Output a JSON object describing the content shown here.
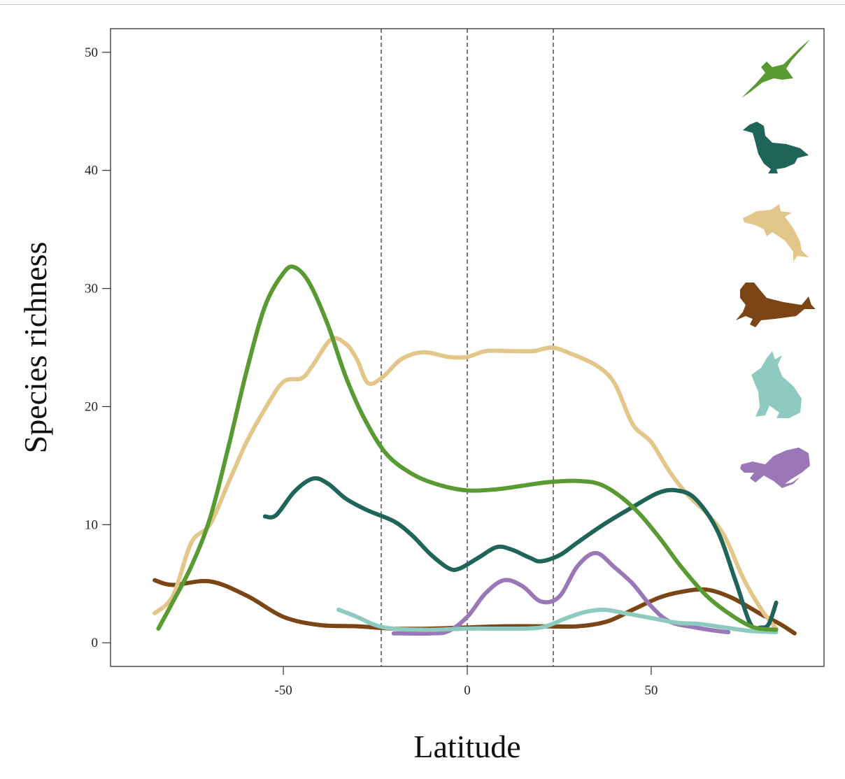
{
  "chart_data": {
    "type": "line",
    "title": "",
    "xlabel": "Latitude",
    "ylabel": "Species richness",
    "xlim": [
      -97,
      97
    ],
    "ylim": [
      -2,
      52
    ],
    "xticks": [
      -50,
      0,
      50
    ],
    "xtick_labels": [
      "-50",
      "0",
      "50"
    ],
    "yticks": [
      0,
      10,
      20,
      30,
      40,
      50
    ],
    "ytick_labels": [
      "0",
      "10",
      "20",
      "30",
      "40",
      "50"
    ],
    "reference_lines_x": [
      -23.4,
      0,
      23.4
    ],
    "grid": false,
    "legend": "right side, silhouette icons",
    "series": [
      {
        "icon": "albatross-silhouette-icon",
        "color": "#5a9a32",
        "points": [
          [
            -84,
            1.2
          ],
          [
            -80,
            3.5
          ],
          [
            -75,
            6.5
          ],
          [
            -70,
            10.5
          ],
          [
            -65,
            16.5
          ],
          [
            -60,
            23
          ],
          [
            -55,
            28.5
          ],
          [
            -50,
            31.3
          ],
          [
            -47,
            31.8
          ],
          [
            -43,
            30.5
          ],
          [
            -38,
            27
          ],
          [
            -33,
            22.5
          ],
          [
            -28,
            19
          ],
          [
            -22,
            16
          ],
          [
            -15,
            14.3
          ],
          [
            -8,
            13.4
          ],
          [
            0,
            12.9
          ],
          [
            8,
            13
          ],
          [
            15,
            13.3
          ],
          [
            22,
            13.6
          ],
          [
            30,
            13.7
          ],
          [
            37,
            13.3
          ],
          [
            45,
            11.5
          ],
          [
            52,
            9
          ],
          [
            58,
            6.5
          ],
          [
            65,
            4
          ],
          [
            72,
            2.3
          ],
          [
            78,
            1.3
          ],
          [
            84,
            1.1
          ]
        ]
      },
      {
        "icon": "duck-silhouette-icon",
        "color": "#1f6458",
        "points": [
          [
            -55,
            10.7
          ],
          [
            -52,
            10.8
          ],
          [
            -47,
            12.8
          ],
          [
            -42,
            13.9
          ],
          [
            -38,
            13.5
          ],
          [
            -33,
            12.2
          ],
          [
            -27,
            11.2
          ],
          [
            -20,
            10.3
          ],
          [
            -15,
            9.1
          ],
          [
            -10,
            7.5
          ],
          [
            -5,
            6.3
          ],
          [
            -2,
            6.3
          ],
          [
            3,
            7.2
          ],
          [
            8,
            8.1
          ],
          [
            12,
            7.9
          ],
          [
            17,
            7.2
          ],
          [
            20,
            6.9
          ],
          [
            25,
            7.4
          ],
          [
            30,
            8.5
          ],
          [
            37,
            10
          ],
          [
            45,
            11.5
          ],
          [
            52,
            12.7
          ],
          [
            57,
            12.9
          ],
          [
            62,
            12.2
          ],
          [
            68,
            9.5
          ],
          [
            73,
            5.2
          ],
          [
            77,
            1.6
          ],
          [
            80,
            1.3
          ],
          [
            82,
            1.6
          ],
          [
            84,
            3.4
          ]
        ]
      },
      {
        "icon": "dolphin-silhouette-icon",
        "color": "#e3c68a",
        "points": [
          [
            -85,
            2.5
          ],
          [
            -80,
            4
          ],
          [
            -75,
            8.5
          ],
          [
            -70,
            10
          ],
          [
            -65,
            13.5
          ],
          [
            -60,
            17
          ],
          [
            -55,
            19.8
          ],
          [
            -50,
            22.1
          ],
          [
            -45,
            22.4
          ],
          [
            -42,
            23.5
          ],
          [
            -37,
            25.7
          ],
          [
            -33,
            25.3
          ],
          [
            -30,
            24
          ],
          [
            -27,
            22
          ],
          [
            -23,
            22.5
          ],
          [
            -18,
            24
          ],
          [
            -12,
            24.6
          ],
          [
            -5,
            24.2
          ],
          [
            0,
            24.2
          ],
          [
            5,
            24.7
          ],
          [
            12,
            24.7
          ],
          [
            18,
            24.7
          ],
          [
            23,
            25
          ],
          [
            28,
            24.5
          ],
          [
            35,
            23.5
          ],
          [
            40,
            22
          ],
          [
            45,
            18.5
          ],
          [
            50,
            17
          ],
          [
            55,
            14.5
          ],
          [
            60,
            12.5
          ],
          [
            65,
            11
          ],
          [
            70,
            9
          ],
          [
            75,
            5.5
          ],
          [
            80,
            2.8
          ],
          [
            84,
            1.2
          ]
        ]
      },
      {
        "icon": "seal-silhouette-icon",
        "color": "#7b4516",
        "points": [
          [
            -85,
            5.3
          ],
          [
            -80,
            4.9
          ],
          [
            -70,
            5.2
          ],
          [
            -60,
            4
          ],
          [
            -50,
            2.2
          ],
          [
            -40,
            1.5
          ],
          [
            -30,
            1.4
          ],
          [
            -20,
            1.2
          ],
          [
            -10,
            1.2
          ],
          [
            0,
            1.3
          ],
          [
            10,
            1.4
          ],
          [
            20,
            1.4
          ],
          [
            30,
            1.4
          ],
          [
            38,
            1.8
          ],
          [
            45,
            2.8
          ],
          [
            52,
            3.8
          ],
          [
            58,
            4.3
          ],
          [
            65,
            4.5
          ],
          [
            72,
            3.8
          ],
          [
            80,
            2.4
          ],
          [
            85,
            1.6
          ],
          [
            89,
            0.8
          ]
        ]
      },
      {
        "icon": "rabbit-silhouette-icon",
        "color": "#8fcac0",
        "points": [
          [
            -35,
            2.8
          ],
          [
            -30,
            2.2
          ],
          [
            -25,
            1.5
          ],
          [
            -20,
            1.2
          ],
          [
            -10,
            1.1
          ],
          [
            0,
            1.2
          ],
          [
            10,
            1.2
          ],
          [
            20,
            1.3
          ],
          [
            27,
            2.1
          ],
          [
            32,
            2.6
          ],
          [
            37,
            2.8
          ],
          [
            43,
            2.5
          ],
          [
            50,
            2.1
          ],
          [
            57,
            1.7
          ],
          [
            63,
            1.6
          ],
          [
            70,
            1.3
          ],
          [
            77,
            1
          ],
          [
            84,
            0.9
          ]
        ]
      },
      {
        "icon": "salamander-silhouette-icon",
        "color": "#9a78b8",
        "points": [
          [
            -20,
            0.8
          ],
          [
            -10,
            0.8
          ],
          [
            -5,
            1
          ],
          [
            0,
            2.2
          ],
          [
            5,
            4.2
          ],
          [
            10,
            5.3
          ],
          [
            15,
            4.8
          ],
          [
            20,
            3.5
          ],
          [
            25,
            3.9
          ],
          [
            30,
            6.5
          ],
          [
            35,
            7.6
          ],
          [
            40,
            6.4
          ],
          [
            45,
            5
          ],
          [
            50,
            3.1
          ],
          [
            55,
            1.8
          ],
          [
            62,
            1.3
          ],
          [
            68,
            1
          ],
          [
            71,
            0.9
          ]
        ]
      }
    ]
  }
}
